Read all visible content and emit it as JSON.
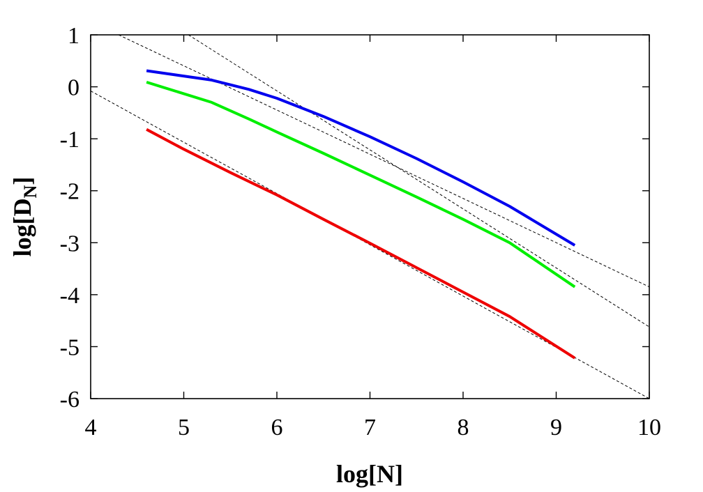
{
  "chart_data": {
    "type": "line",
    "xlabel": "log[N]",
    "ylabel": {
      "base": "log[D",
      "subscript": "N",
      "close": "]"
    },
    "xlim": [
      4,
      10
    ],
    "ylim": [
      -6,
      1
    ],
    "xticks": [
      4,
      5,
      6,
      7,
      8,
      9,
      10
    ],
    "yticks": [
      1,
      0,
      -1,
      -2,
      -3,
      -4,
      -5,
      -6
    ],
    "grid": false,
    "legend": "none",
    "series": [
      {
        "color": "#0000ee",
        "x": [
          4.6,
          5.3,
          5.7,
          6.0,
          6.5,
          7.0,
          7.5,
          8.0,
          8.5,
          9.2
        ],
        "y": [
          0.31,
          0.13,
          -0.05,
          -0.22,
          -0.57,
          -0.96,
          -1.38,
          -1.83,
          -2.3,
          -3.05
        ]
      },
      {
        "color": "#00ee00",
        "x": [
          4.6,
          5.3,
          5.7,
          6.0,
          6.5,
          7.0,
          7.5,
          8.0,
          8.5,
          9.2
        ],
        "y": [
          0.09,
          -0.3,
          -0.62,
          -0.87,
          -1.28,
          -1.7,
          -2.12,
          -2.55,
          -3.0,
          -3.85
        ]
      },
      {
        "color": "#ee0000",
        "x": [
          4.6,
          5.0,
          5.5,
          6.0,
          6.5,
          7.0,
          7.5,
          8.0,
          8.5,
          9.2
        ],
        "y": [
          -0.82,
          -1.2,
          -1.65,
          -2.08,
          -2.55,
          -3.01,
          -3.48,
          -3.95,
          -4.42,
          -5.22
        ]
      }
    ],
    "reference_lines": [
      {
        "x": [
          4.3,
          10
        ],
        "y": [
          1.0,
          -3.85
        ]
      },
      {
        "x": [
          5.05,
          10
        ],
        "y": [
          1.0,
          -4.62
        ]
      },
      {
        "x": [
          4.0,
          10
        ],
        "y": [
          -0.08,
          -6.0
        ]
      }
    ]
  }
}
